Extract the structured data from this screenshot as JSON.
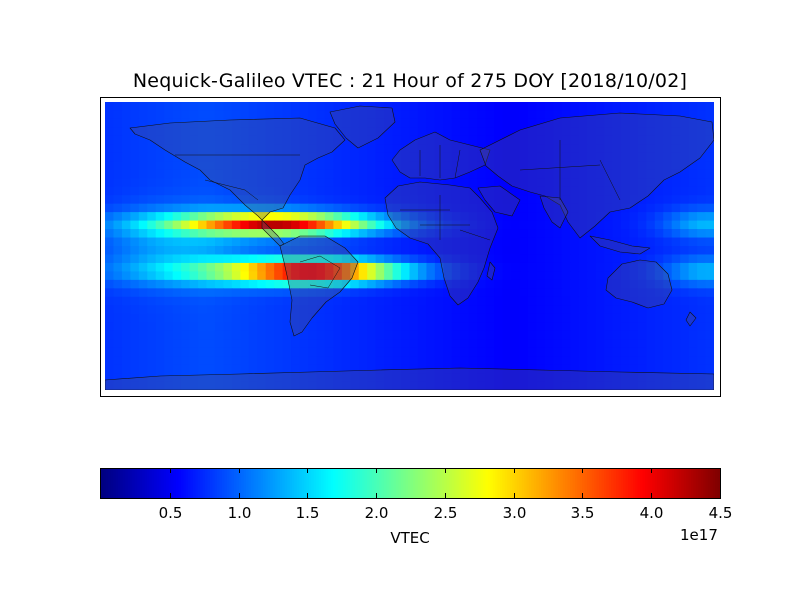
{
  "chart_data": {
    "type": "heatmap",
    "title": "Nequick-Galileo VTEC : 21 Hour of 275 DOY [2018/10/02]",
    "projection": "equirectangular",
    "lon_range": [
      -180,
      180
    ],
    "lat_range": [
      -85,
      85
    ],
    "grid_resolution_deg": 5,
    "colormap": "jet",
    "colorbar": {
      "label": "VTEC",
      "range": [
        0,
        4.5
      ],
      "ticks": [
        0.5,
        1.0,
        1.5,
        2.0,
        2.5,
        3.0,
        3.5,
        4.0,
        4.5
      ],
      "tick_labels": [
        "0.5",
        "1.0",
        "1.5",
        "2.0",
        "2.5",
        "3.0",
        "3.5",
        "4.0",
        "4.5"
      ],
      "offset_text": "1e17",
      "orientation": "horizontal",
      "position": "bottom"
    },
    "features": {
      "northern_crest": {
        "lat": 13,
        "lon_peak": -75,
        "peak_value": 4.0
      },
      "southern_crest": {
        "lat": -15,
        "lon_peak": -55,
        "peak_value": 4.4
      },
      "background_day": 0.9,
      "background_night": 0.55,
      "coastlines": true,
      "country_borders": true,
      "land_shaded": true
    }
  }
}
